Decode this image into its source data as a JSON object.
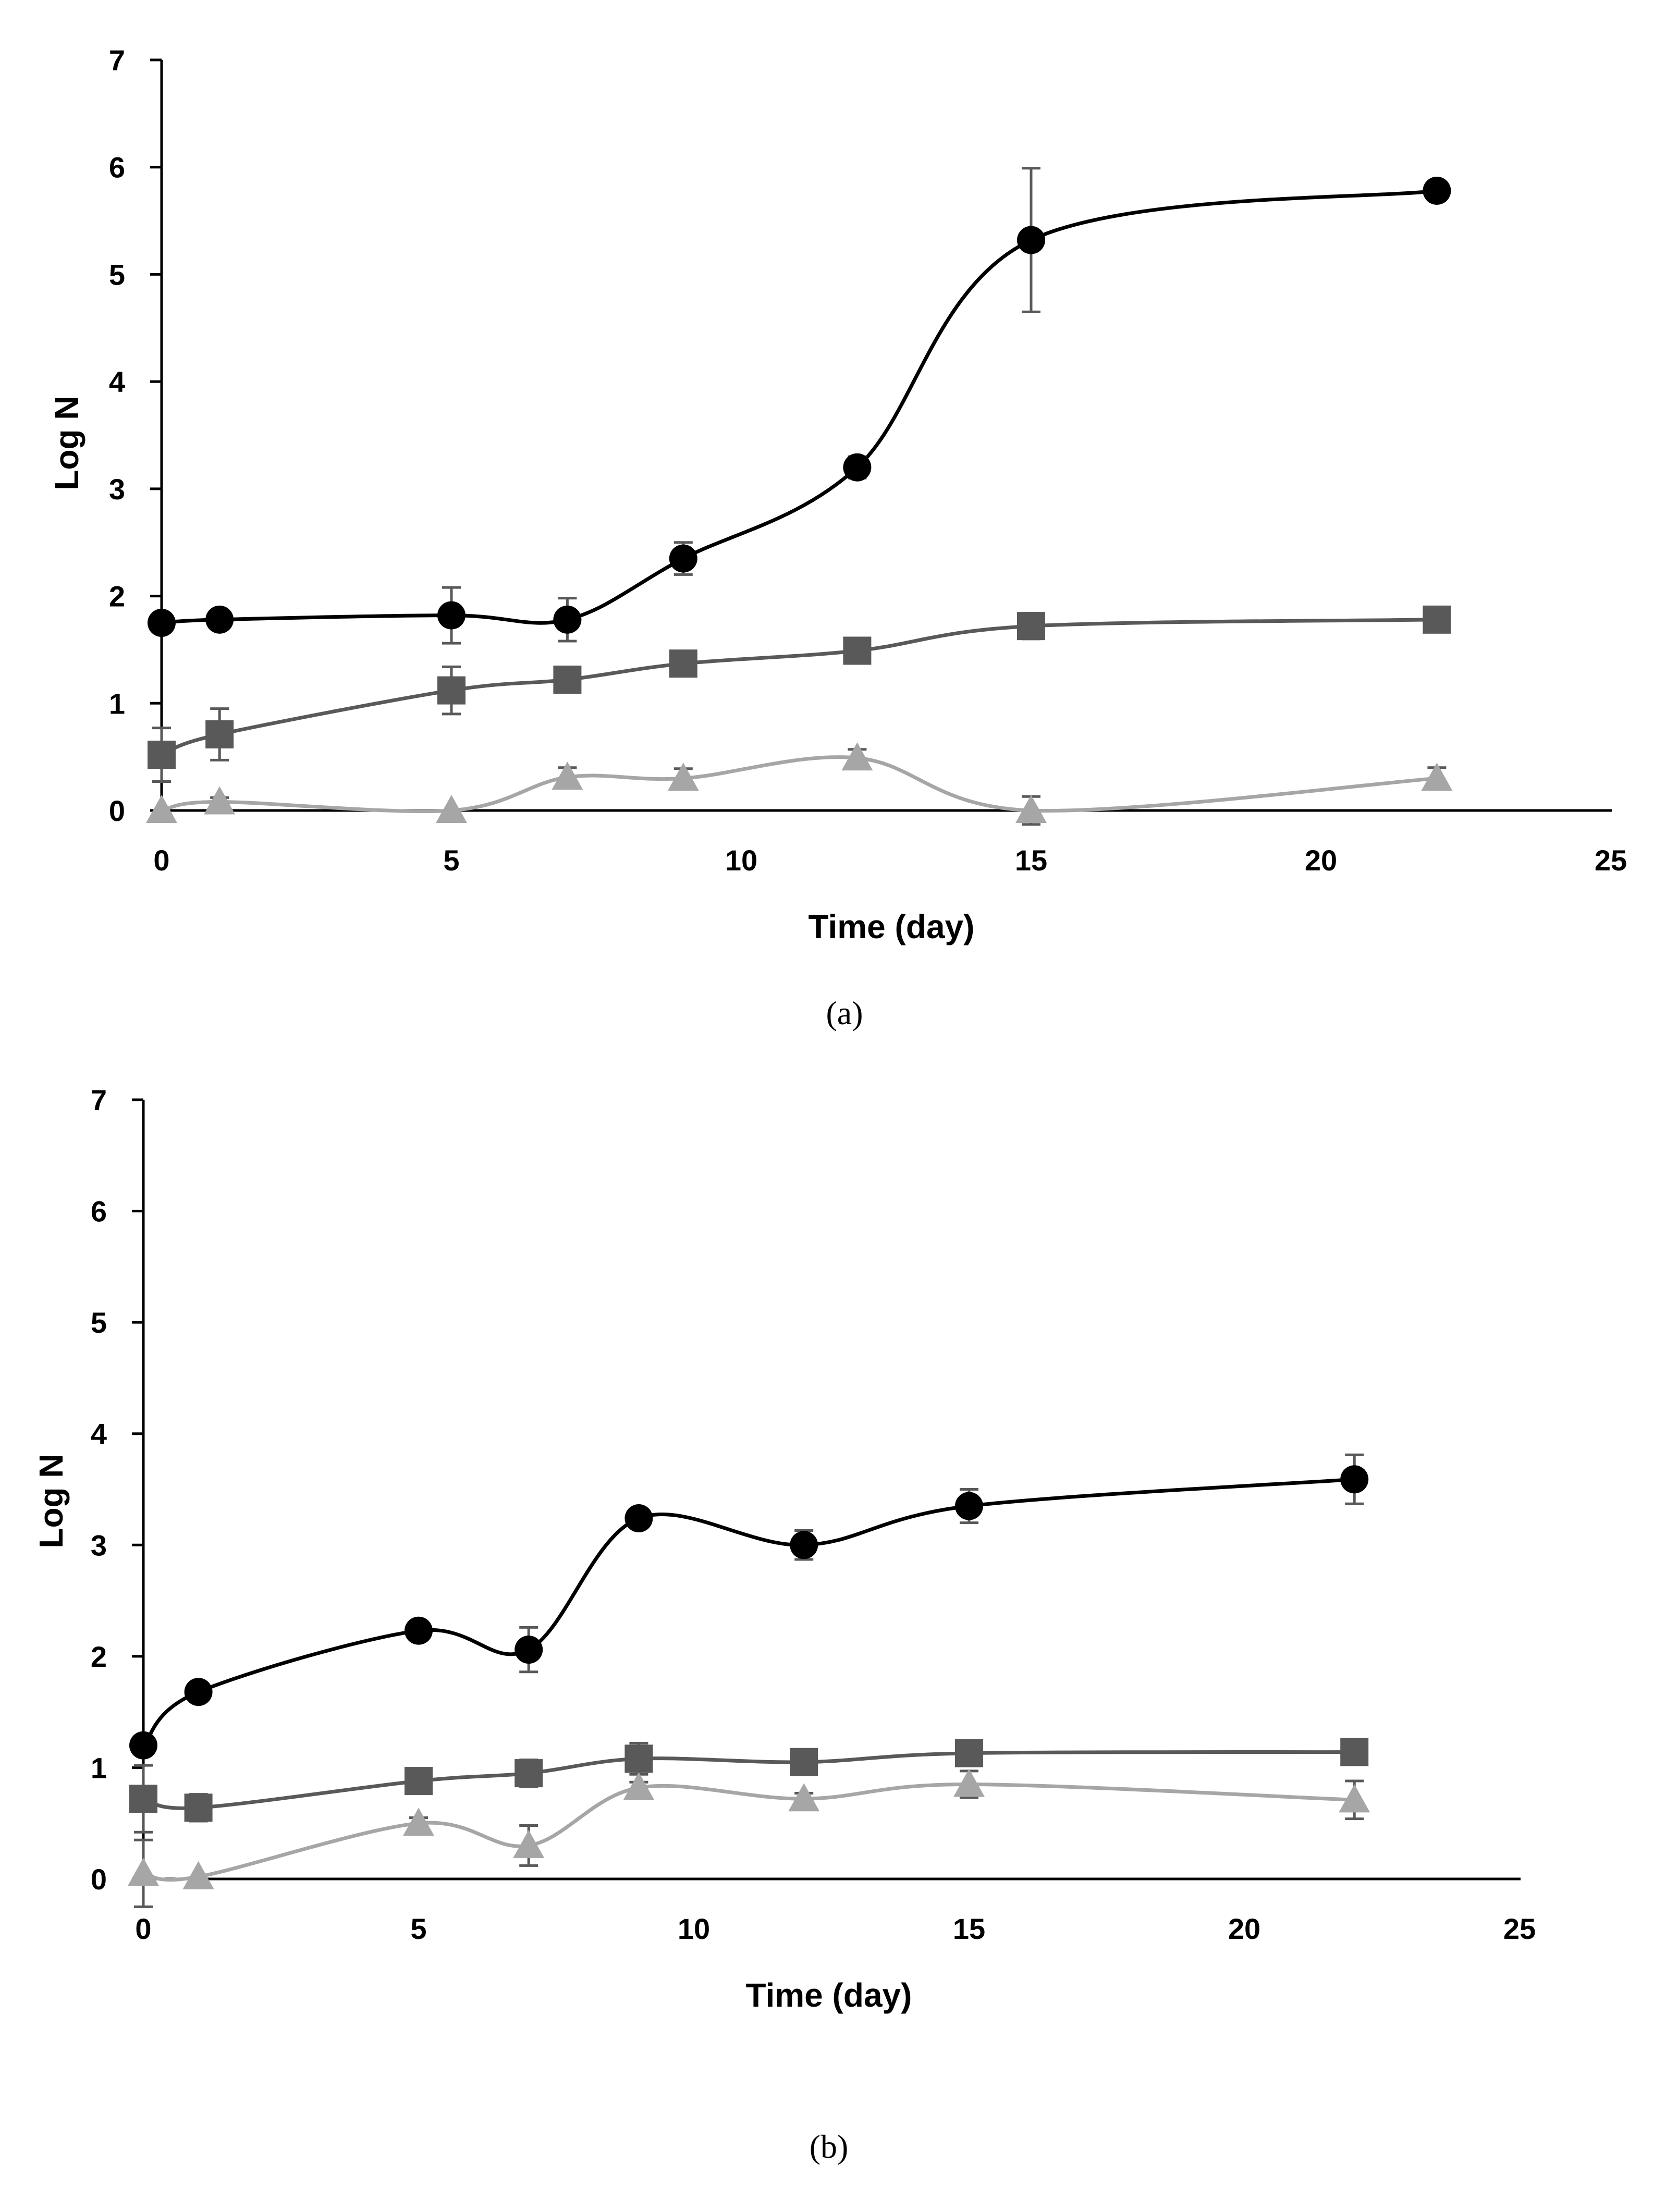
{
  "chart_data": [
    {
      "panel": "(a)",
      "type": "line",
      "xlabel": "Time (day)",
      "ylabel": "Log N",
      "xlim": [
        0,
        25
      ],
      "ylim": [
        0,
        7
      ],
      "xticks": [
        0,
        5,
        10,
        15,
        20,
        25
      ],
      "yticks": [
        0,
        1,
        2,
        3,
        4,
        5,
        6,
        7
      ],
      "series": [
        {
          "name": "circle",
          "marker": "circle",
          "color": "#000000",
          "x": [
            0,
            1,
            5,
            7,
            9,
            12,
            15,
            22
          ],
          "y": [
            1.75,
            1.78,
            1.82,
            1.78,
            2.35,
            3.2,
            5.32,
            5.78
          ],
          "err": [
            0.05,
            0.05,
            0.26,
            0.2,
            0.15,
            0.1,
            0.67,
            0.05
          ]
        },
        {
          "name": "square",
          "marker": "square",
          "color": "#595959",
          "x": [
            0,
            1,
            5,
            7,
            9,
            12,
            15,
            22
          ],
          "y": [
            0.52,
            0.71,
            1.12,
            1.22,
            1.37,
            1.49,
            1.72,
            1.78
          ],
          "err": [
            0.25,
            0.24,
            0.22,
            0.07,
            0.05,
            0.05,
            0.12,
            0.05
          ]
        },
        {
          "name": "triangle",
          "marker": "triangle",
          "color": "#a6a6a6",
          "x": [
            0,
            1,
            5,
            7,
            9,
            12,
            15,
            22
          ],
          "y": [
            0.0,
            0.08,
            0.0,
            0.31,
            0.3,
            0.49,
            0.0,
            0.3
          ],
          "err": [
            0.0,
            0.04,
            0.0,
            0.09,
            0.09,
            0.08,
            0.13,
            0.1
          ]
        }
      ]
    },
    {
      "panel": "(b)",
      "type": "line",
      "xlabel": "Time (day)",
      "ylabel": "Log N",
      "xlim": [
        0,
        25
      ],
      "ylim": [
        0,
        7
      ],
      "xticks": [
        0,
        5,
        10,
        15,
        20,
        25
      ],
      "yticks": [
        0,
        1,
        2,
        3,
        4,
        5,
        6,
        7
      ],
      "series": [
        {
          "name": "circle",
          "marker": "circle",
          "color": "#000000",
          "x": [
            0,
            1,
            5,
            7,
            9,
            12,
            15,
            22
          ],
          "y": [
            1.2,
            1.68,
            2.23,
            2.06,
            3.24,
            3.0,
            3.35,
            3.59
          ],
          "err": [
            0.05,
            0.05,
            0.05,
            0.2,
            0.08,
            0.13,
            0.15,
            0.22
          ]
        },
        {
          "name": "square",
          "marker": "square",
          "color": "#595959",
          "x": [
            0,
            1,
            5,
            7,
            9,
            12,
            15,
            22
          ],
          "y": [
            0.72,
            0.64,
            0.88,
            0.95,
            1.08,
            1.05,
            1.13,
            1.14
          ],
          "err": [
            0.3,
            0.12,
            0.05,
            0.12,
            0.14,
            0.05,
            0.05,
            0.1
          ]
        },
        {
          "name": "triangle",
          "marker": "triangle",
          "color": "#a6a6a6",
          "x": [
            0,
            1,
            5,
            7,
            9,
            12,
            15,
            22
          ],
          "y": [
            0.05,
            0.02,
            0.5,
            0.3,
            0.82,
            0.72,
            0.85,
            0.71
          ],
          "err": [
            0.3,
            0.0,
            0.05,
            0.18,
            0.05,
            0.05,
            0.12,
            0.17
          ]
        }
      ]
    }
  ]
}
